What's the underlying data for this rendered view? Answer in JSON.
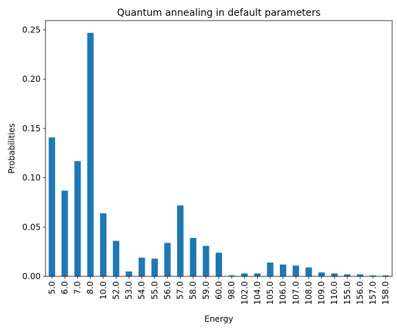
{
  "chart_data": {
    "type": "bar",
    "title": "Quantum annealing in default parameters",
    "xlabel": "Energy",
    "ylabel": "Probabilities",
    "categories": [
      "5.0",
      "6.0",
      "7.0",
      "8.0",
      "10.0",
      "52.0",
      "53.0",
      "54.0",
      "55.0",
      "56.0",
      "57.0",
      "58.0",
      "59.0",
      "60.0",
      "98.0",
      "102.0",
      "104.0",
      "105.0",
      "106.0",
      "107.0",
      "108.0",
      "109.0",
      "110.0",
      "155.0",
      "156.0",
      "157.0",
      "158.0"
    ],
    "values": [
      0.141,
      0.087,
      0.117,
      0.247,
      0.064,
      0.036,
      0.005,
      0.019,
      0.018,
      0.034,
      0.072,
      0.039,
      0.031,
      0.024,
      0.001,
      0.003,
      0.003,
      0.014,
      0.012,
      0.011,
      0.009,
      0.004,
      0.003,
      0.002,
      0.002,
      0.001,
      0.001
    ],
    "ylim": [
      0,
      0.2594
    ],
    "yticks": [
      "0.00",
      "0.05",
      "0.10",
      "0.15",
      "0.20",
      "0.25"
    ],
    "ytick_values": [
      0,
      0.05,
      0.1,
      0.15,
      0.2,
      0.25
    ],
    "bar_color": "#1f77b4",
    "grid": false,
    "legend": "none"
  }
}
